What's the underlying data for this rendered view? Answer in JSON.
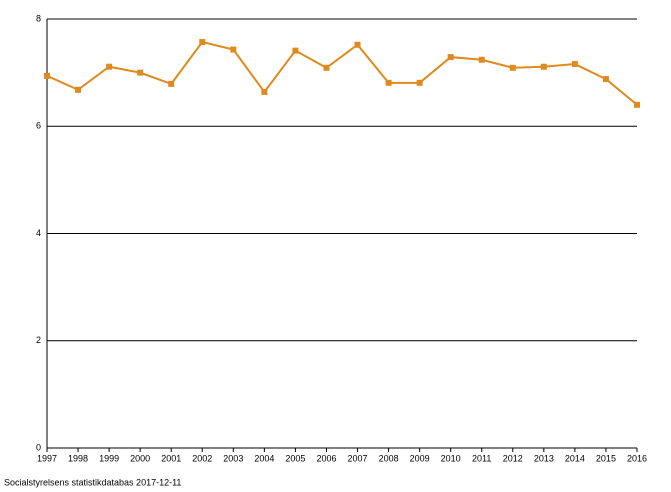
{
  "chart_data": {
    "type": "line",
    "categories": [
      "1997",
      "1998",
      "1999",
      "2000",
      "2001",
      "2002",
      "2003",
      "2004",
      "2005",
      "2006",
      "2007",
      "2008",
      "2009",
      "2010",
      "2011",
      "2012",
      "2013",
      "2014",
      "2015",
      "2016"
    ],
    "series": [
      {
        "color": "#e08a1e",
        "values": [
          6.94,
          6.68,
          7.11,
          7.0,
          6.79,
          7.57,
          7.43,
          6.64,
          7.41,
          7.09,
          7.52,
          6.81,
          6.81,
          7.29,
          7.24,
          7.09,
          7.11,
          7.16,
          6.88,
          6.4
        ]
      }
    ],
    "ylim": [
      0,
      8
    ],
    "yticks": [
      0,
      2,
      4,
      6,
      8
    ],
    "grid": true,
    "source": "Socialstyrelsens statistikdatabas 2017-12-11"
  }
}
